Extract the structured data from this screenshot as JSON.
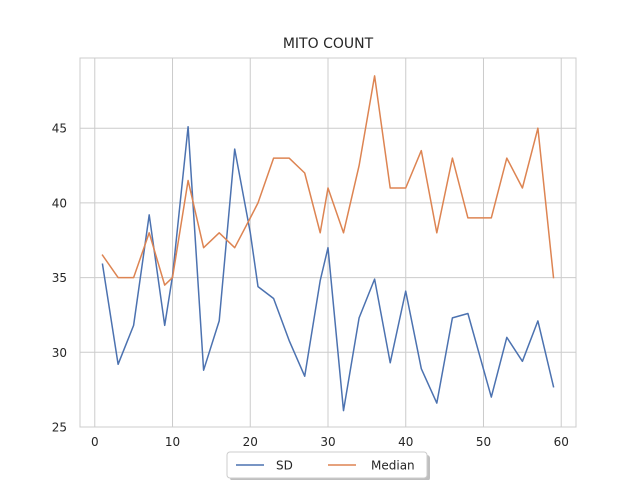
{
  "chart_data": {
    "type": "line",
    "title": "MITO COUNT",
    "xlabel": "",
    "ylabel": "",
    "xlim": [
      -1.9,
      61.9
    ],
    "ylim": [
      25,
      49.7
    ],
    "x_ticks": [
      0,
      10,
      20,
      30,
      40,
      50,
      60
    ],
    "y_ticks": [
      25,
      30,
      35,
      40,
      45
    ],
    "grid": true,
    "legend_position": "bottom-center",
    "x": [
      1,
      3,
      5,
      7,
      9,
      10,
      12,
      14,
      16,
      18,
      20,
      21,
      23,
      25,
      27,
      29,
      30,
      32,
      34,
      36,
      38,
      40,
      42,
      44,
      46,
      48,
      51,
      53,
      55,
      57,
      59
    ],
    "series": [
      {
        "name": "SD",
        "color": "#4c72b0",
        "values": [
          35.9,
          29.2,
          31.8,
          39.2,
          31.8,
          35.1,
          45.1,
          28.8,
          32.1,
          43.6,
          38.0,
          34.4,
          33.6,
          30.8,
          28.4,
          34.8,
          37.0,
          26.1,
          32.3,
          34.9,
          29.3,
          34.1,
          28.9,
          26.6,
          32.3,
          32.6,
          27.0,
          31.0,
          29.4,
          32.1,
          27.7
        ]
      },
      {
        "name": "Median",
        "color": "#dd8452",
        "values": [
          36.5,
          35.0,
          35.0,
          38.0,
          34.5,
          35.0,
          41.5,
          37.0,
          38.0,
          37.0,
          39.0,
          40.0,
          43.0,
          43.0,
          42.0,
          38.0,
          41.0,
          38.0,
          42.5,
          48.5,
          41.0,
          41.0,
          43.5,
          38.0,
          43.0,
          39.0,
          39.0,
          43.0,
          41.0,
          45.0,
          35.0
        ]
      }
    ]
  }
}
